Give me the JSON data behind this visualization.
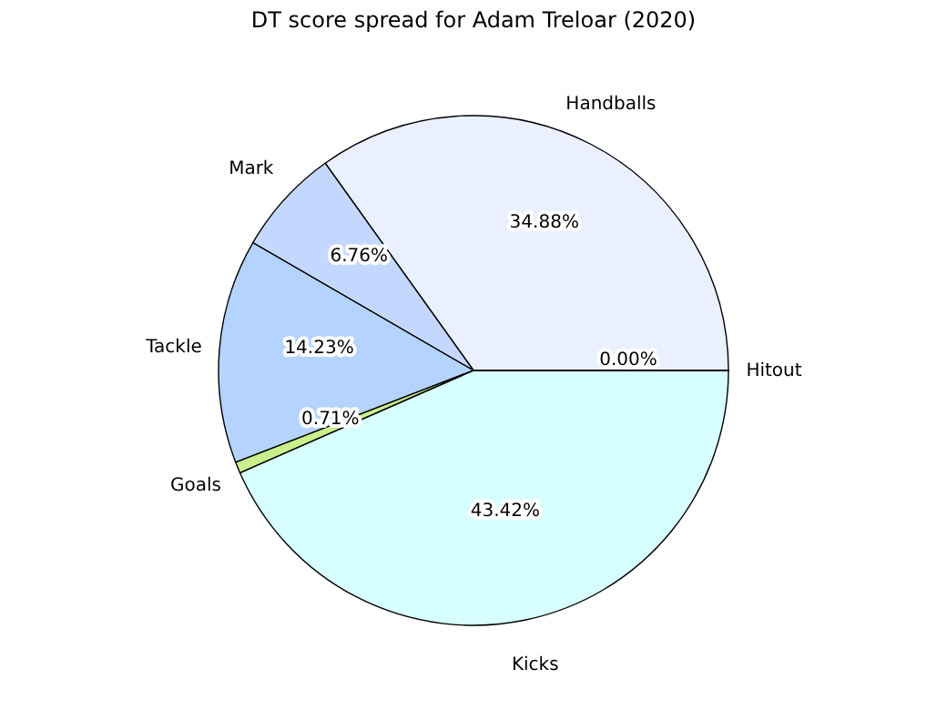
{
  "chart_data": {
    "type": "pie",
    "title": "DT score spread for Adam Treloar (2020)",
    "categories": [
      "Handballs",
      "Mark",
      "Tackle",
      "Goals",
      "Kicks",
      "Hitout"
    ],
    "values": [
      34.88,
      6.76,
      14.23,
      0.71,
      43.42,
      0.0
    ],
    "colors": [
      "#eaf0ff",
      "#c4d8ff",
      "#b4d4ff",
      "#c8f08c",
      "#d8ffff",
      "#f8ffff"
    ],
    "value_labels": [
      "34.88%",
      "6.76%",
      "14.23%",
      "0.71%",
      "43.42%",
      "0.00%"
    ],
    "legend": false
  }
}
